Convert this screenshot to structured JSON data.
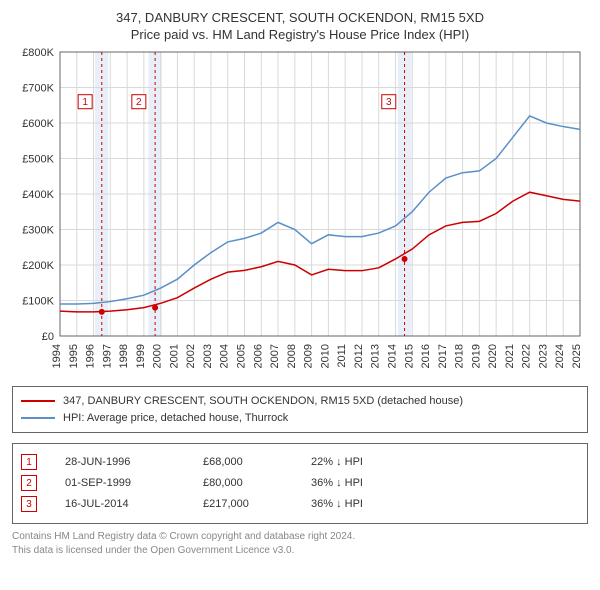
{
  "title_line1": "347, DANBURY CRESCENT, SOUTH OCKENDON, RM15 5XD",
  "title_line2": "Price paid vs. HM Land Registry's House Price Index (HPI)",
  "chart": {
    "type": "line",
    "background_color": "#ffffff",
    "grid_color": "#d9d9d9",
    "axis_color": "#666666",
    "label_fontsize": 11,
    "x": {
      "years": [
        1994,
        1995,
        1996,
        1997,
        1998,
        1999,
        2000,
        2001,
        2002,
        2003,
        2004,
        2005,
        2006,
        2007,
        2008,
        2009,
        2010,
        2011,
        2012,
        2013,
        2014,
        2015,
        2016,
        2017,
        2018,
        2019,
        2020,
        2021,
        2022,
        2023,
        2024,
        2025
      ]
    },
    "y": {
      "label_prefix": "£",
      "ticks": [
        0,
        100000,
        200000,
        300000,
        400000,
        500000,
        600000,
        700000,
        800000
      ],
      "tick_labels": [
        "£0",
        "£100K",
        "£200K",
        "£300K",
        "£400K",
        "£500K",
        "£600K",
        "£700K",
        "£800K"
      ]
    },
    "sale_bands": {
      "fill": "#e8eff8",
      "centers_year": [
        1996.49,
        1999.67,
        2014.54
      ],
      "half_width_years": 0.4
    },
    "sale_markers": {
      "points": [
        {
          "year": 1996.49,
          "value": 68000,
          "badge": "1",
          "badge_year": 1995.5,
          "badge_value": 660000
        },
        {
          "year": 1999.67,
          "value": 80000,
          "badge": "2",
          "badge_year": 1998.7,
          "badge_value": 660000
        },
        {
          "year": 2014.54,
          "value": 217000,
          "badge": "3",
          "badge_year": 2013.6,
          "badge_value": 660000
        }
      ],
      "marker_fill": "#cc0000",
      "marker_radius": 3,
      "vline_color": "#cc0000",
      "vline_dash": "3,3",
      "badge_border": "#cc0000",
      "badge_text_color": "#cc0000",
      "badge_size": 14,
      "badge_fontsize": 10
    },
    "series": [
      {
        "name": "HPI: Average price, detached house, Thurrock",
        "color": "#5b8fc7",
        "width": 1.5,
        "data": [
          [
            1994,
            90000
          ],
          [
            1995,
            90000
          ],
          [
            1996,
            92000
          ],
          [
            1997,
            97000
          ],
          [
            1998,
            105000
          ],
          [
            1999,
            115000
          ],
          [
            2000,
            135000
          ],
          [
            2001,
            160000
          ],
          [
            2002,
            200000
          ],
          [
            2003,
            235000
          ],
          [
            2004,
            265000
          ],
          [
            2005,
            275000
          ],
          [
            2006,
            290000
          ],
          [
            2007,
            320000
          ],
          [
            2008,
            300000
          ],
          [
            2009,
            260000
          ],
          [
            2010,
            285000
          ],
          [
            2011,
            280000
          ],
          [
            2012,
            280000
          ],
          [
            2013,
            290000
          ],
          [
            2014,
            310000
          ],
          [
            2015,
            350000
          ],
          [
            2016,
            405000
          ],
          [
            2017,
            445000
          ],
          [
            2018,
            460000
          ],
          [
            2019,
            465000
          ],
          [
            2020,
            500000
          ],
          [
            2021,
            560000
          ],
          [
            2022,
            620000
          ],
          [
            2023,
            600000
          ],
          [
            2024,
            590000
          ],
          [
            2025,
            582000
          ]
        ]
      },
      {
        "name": "347, DANBURY CRESCENT, SOUTH OCKENDON, RM15 5XD (detached house)",
        "color": "#cc0000",
        "width": 1.5,
        "data": [
          [
            1994,
            70000
          ],
          [
            1995,
            68000
          ],
          [
            1996,
            68000
          ],
          [
            1997,
            70000
          ],
          [
            1998,
            74000
          ],
          [
            1999,
            80000
          ],
          [
            2000,
            92000
          ],
          [
            2001,
            108000
          ],
          [
            2002,
            135000
          ],
          [
            2003,
            160000
          ],
          [
            2004,
            180000
          ],
          [
            2005,
            185000
          ],
          [
            2006,
            195000
          ],
          [
            2007,
            210000
          ],
          [
            2008,
            200000
          ],
          [
            2009,
            172000
          ],
          [
            2010,
            188000
          ],
          [
            2011,
            184000
          ],
          [
            2012,
            184000
          ],
          [
            2013,
            192000
          ],
          [
            2014,
            217000
          ],
          [
            2015,
            245000
          ],
          [
            2016,
            285000
          ],
          [
            2017,
            310000
          ],
          [
            2018,
            320000
          ],
          [
            2019,
            323000
          ],
          [
            2020,
            345000
          ],
          [
            2021,
            380000
          ],
          [
            2022,
            405000
          ],
          [
            2023,
            395000
          ],
          [
            2024,
            385000
          ],
          [
            2025,
            380000
          ]
        ]
      }
    ]
  },
  "legend": {
    "rows": [
      {
        "color": "#cc0000",
        "label": "347, DANBURY CRESCENT, SOUTH OCKENDON, RM15 5XD (detached house)"
      },
      {
        "color": "#5b8fc7",
        "label": "HPI: Average price, detached house, Thurrock"
      }
    ]
  },
  "sales": {
    "rows": [
      {
        "badge": "1",
        "date": "28-JUN-1996",
        "price": "£68,000",
        "pct": "22% ↓ HPI"
      },
      {
        "badge": "2",
        "date": "01-SEP-1999",
        "price": "£80,000",
        "pct": "36% ↓ HPI"
      },
      {
        "badge": "3",
        "date": "16-JUL-2014",
        "price": "£217,000",
        "pct": "36% ↓ HPI"
      }
    ]
  },
  "footer": {
    "line1": "Contains HM Land Registry data © Crown copyright and database right 2024.",
    "line2": "This data is licensed under the Open Government Licence v3.0."
  }
}
